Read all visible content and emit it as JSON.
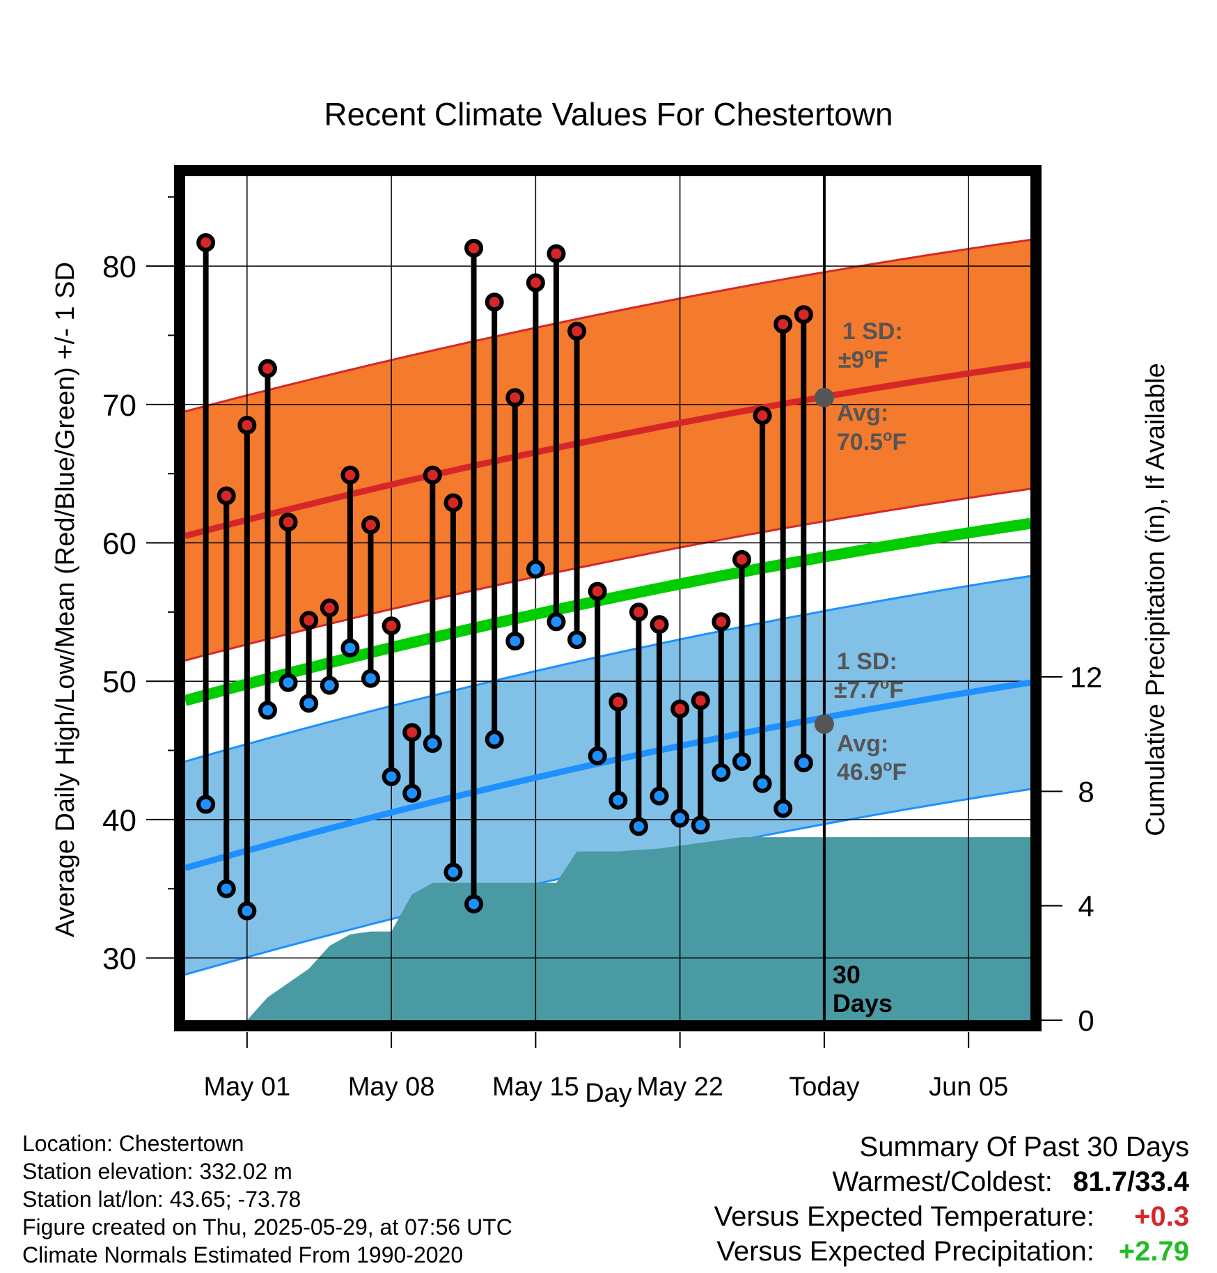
{
  "chart_data": {
    "type": "line",
    "title": "Recent Climate Values For Chestertown",
    "xlabel": "Day",
    "ylabel": "Average Daily High/Low/Mean (Red/Blue/Green) +/- 1 SD",
    "y2label": "Cumulative Precipitation (in), If Available",
    "x_tick_labels": [
      "May 01",
      "May 08",
      "May 15",
      "May 22",
      "Today",
      "Jun 05"
    ],
    "x_tick_dates": [
      "2025-05-01",
      "2025-05-08",
      "2025-05-15",
      "2025-05-22",
      "2025-05-29",
      "2025-06-05"
    ],
    "xlim": [
      "2025-04-28",
      "2025-06-08"
    ],
    "ylim": [
      25.5,
      86.5
    ],
    "y_ticks": [
      30,
      40,
      50,
      60,
      70,
      80
    ],
    "y2lim": [
      0,
      29.5
    ],
    "y2_ticks": [
      0,
      4,
      8,
      12
    ],
    "grid": true,
    "today": "2025-05-29",
    "dates": [
      "2025-04-29",
      "2025-04-30",
      "2025-05-01",
      "2025-05-02",
      "2025-05-03",
      "2025-05-04",
      "2025-05-05",
      "2025-05-06",
      "2025-05-07",
      "2025-05-08",
      "2025-05-09",
      "2025-05-10",
      "2025-05-11",
      "2025-05-12",
      "2025-05-13",
      "2025-05-14",
      "2025-05-15",
      "2025-05-16",
      "2025-05-17",
      "2025-05-18",
      "2025-05-19",
      "2025-05-20",
      "2025-05-21",
      "2025-05-22",
      "2025-05-23",
      "2025-05-24",
      "2025-05-25",
      "2025-05-26",
      "2025-05-27",
      "2025-05-28"
    ],
    "series": [
      {
        "name": "High",
        "color": "#d62728",
        "values": [
          81.7,
          63.4,
          68.5,
          72.6,
          61.5,
          54.4,
          55.3,
          64.9,
          61.3,
          54.0,
          46.3,
          64.9,
          62.9,
          81.3,
          77.4,
          70.5,
          78.8,
          80.9,
          75.3,
          56.5,
          48.5,
          55.0,
          54.1,
          48.0,
          48.6,
          54.3,
          58.8,
          69.2,
          75.8,
          76.5
        ]
      },
      {
        "name": "Low",
        "color": "#1e90ff",
        "values": [
          41.1,
          35.0,
          33.4,
          47.9,
          49.9,
          48.4,
          49.7,
          52.4,
          50.2,
          43.1,
          41.9,
          45.5,
          36.2,
          33.9,
          45.8,
          52.9,
          58.1,
          54.3,
          53.0,
          44.6,
          41.4,
          39.5,
          41.7,
          40.1,
          39.6,
          43.4,
          44.2,
          42.6,
          40.8,
          44.1
        ]
      }
    ],
    "normal_high": {
      "start": 60.5,
      "end": 72.9,
      "color": "#d62728",
      "band_color": "#f47a2e",
      "sd": 9
    },
    "normal_low": {
      "start": 36.5,
      "end": 49.9,
      "color": "#1e90ff",
      "band_color": "#82c1e7",
      "sd": 7.7
    },
    "normal_mean": {
      "start": 48.6,
      "end": 61.4,
      "color": "#00cc00"
    },
    "precip_cumulative": {
      "color": "#4a9aa4",
      "dates": [
        "2025-05-01",
        "2025-05-02",
        "2025-05-03",
        "2025-05-04",
        "2025-05-05",
        "2025-05-06",
        "2025-05-07",
        "2025-05-08",
        "2025-05-09",
        "2025-05-10",
        "2025-05-11",
        "2025-05-12",
        "2025-05-13",
        "2025-05-14",
        "2025-05-15",
        "2025-05-16",
        "2025-05-17",
        "2025-05-18",
        "2025-05-19",
        "2025-05-20",
        "2025-05-21",
        "2025-05-22",
        "2025-05-23",
        "2025-05-24",
        "2025-05-25",
        "2025-05-26",
        "2025-05-27",
        "2025-05-28",
        "2025-05-29",
        "2025-06-08"
      ],
      "values": [
        0.0,
        0.8,
        1.3,
        1.8,
        2.6,
        3.0,
        3.1,
        3.1,
        4.4,
        4.8,
        4.8,
        4.8,
        4.8,
        4.8,
        4.8,
        4.8,
        5.9,
        5.9,
        5.9,
        5.95,
        6.0,
        6.1,
        6.2,
        6.3,
        6.4,
        6.4,
        6.4,
        6.4,
        6.4,
        6.4
      ]
    },
    "annotations": {
      "high_sd_label": "1 SD:",
      "high_sd_value": "±9",
      "high_avg_label": "Avg:",
      "high_avg_value": "70.5",
      "high_avg_at": 70.5,
      "low_sd_label": "1 SD:",
      "low_sd_value": "±7.7",
      "low_avg_label": "Avg:",
      "low_avg_value": "46.9",
      "low_avg_at": 46.9,
      "degree_unit": "o",
      "f_unit": "F",
      "days_number": "30",
      "days_word": "Days"
    }
  },
  "info": {
    "location": "Location: Chestertown",
    "elevation": "Station elevation: 332.02 m",
    "latlon": "Station lat/lon: 43.65; -73.78",
    "created": "Figure created on Thu, 2025-05-29, at 07:56 UTC",
    "normals": "Climate Normals Estimated From 1990-2020"
  },
  "summary": {
    "title": "Summary Of Past 30 Days",
    "warm_label": "Warmest/Coldest:",
    "warm_value": "81.7/33.4",
    "temp_label": "Versus Expected Temperature:",
    "temp_value": "+0.3",
    "temp_color": "#d62728",
    "precip_label": "Versus Expected Precipitation:",
    "precip_value": "+2.79",
    "precip_color": "#22bb22"
  }
}
